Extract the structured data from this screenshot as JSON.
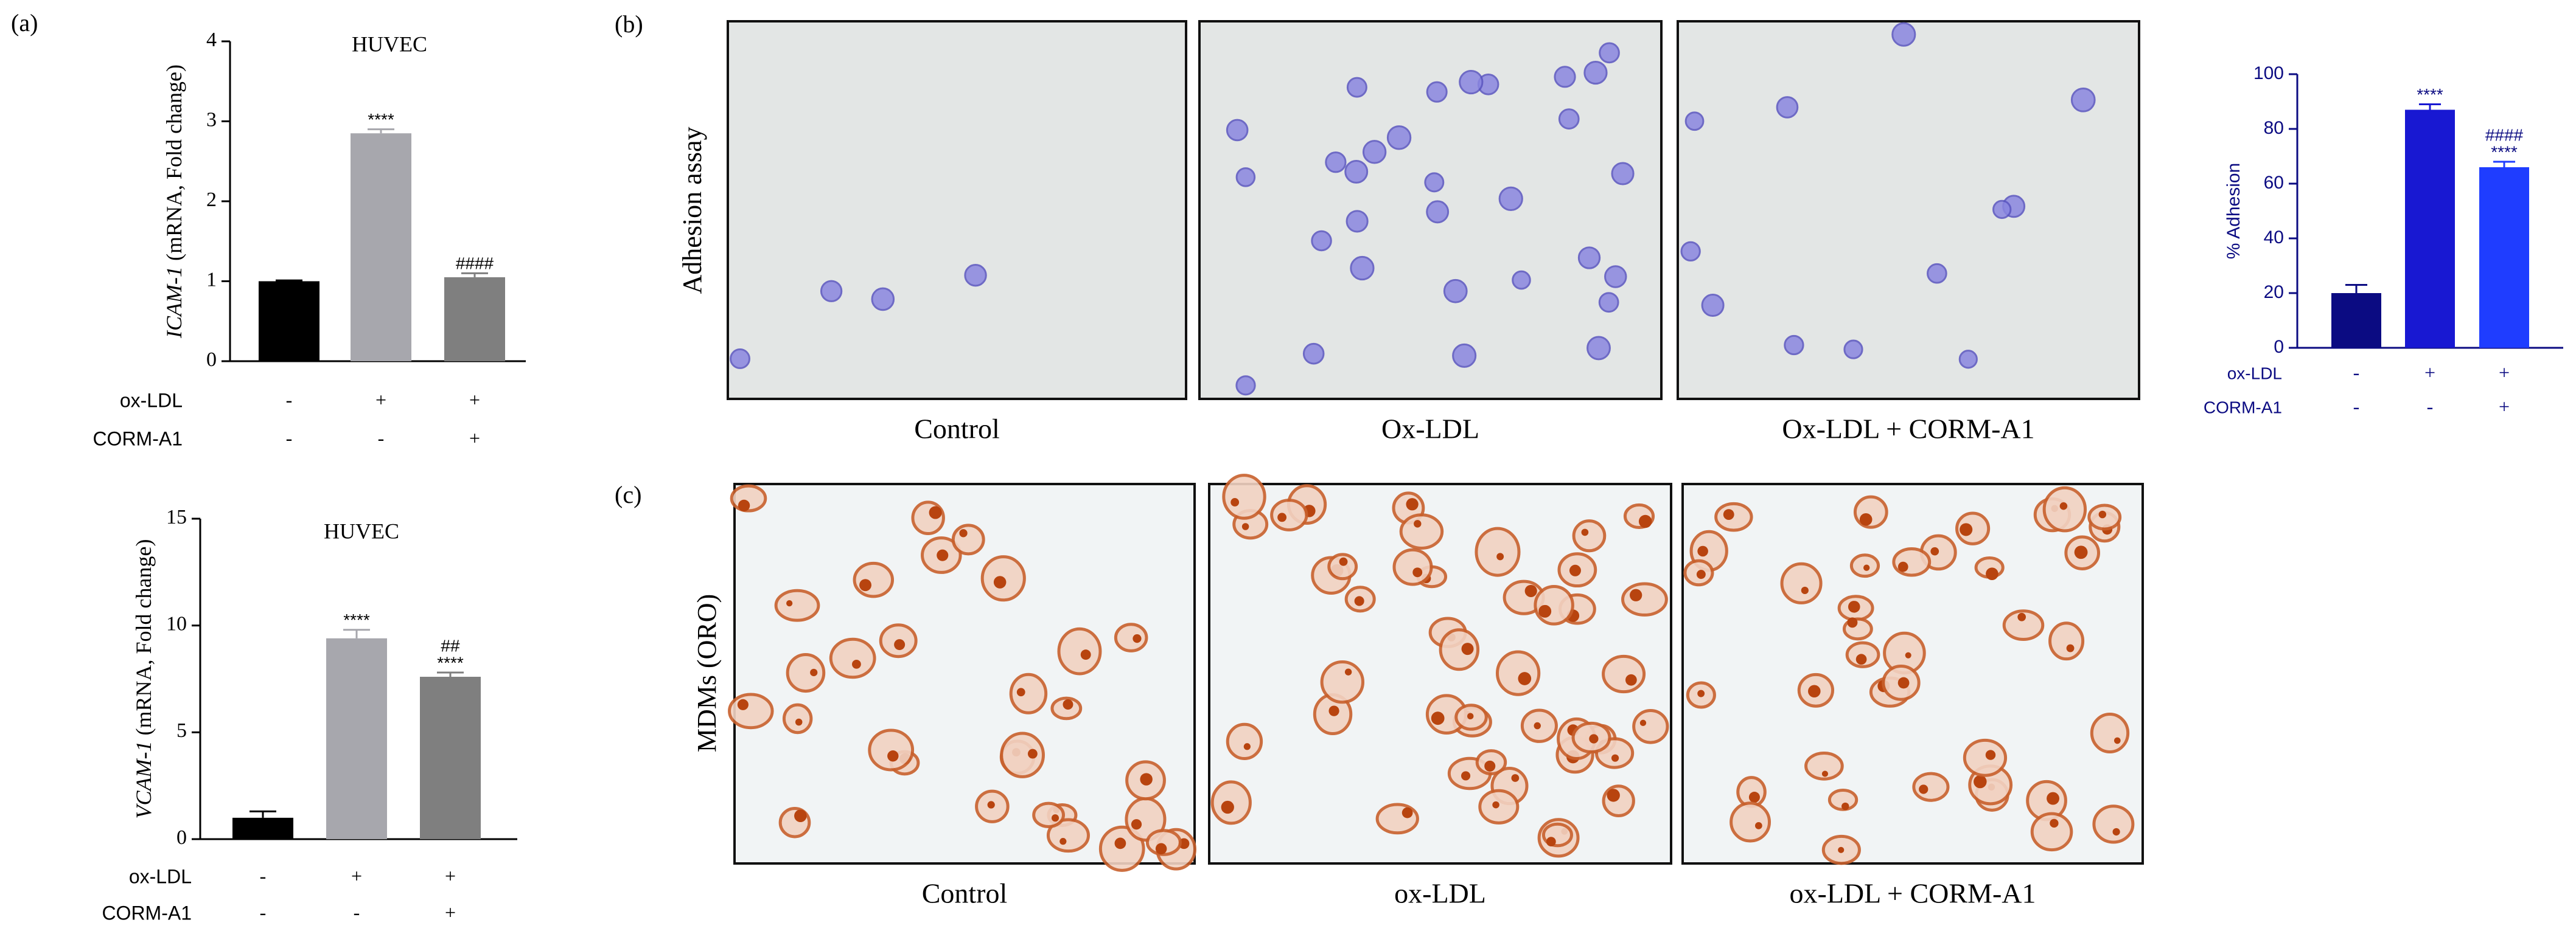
{
  "panels": {
    "a": "(a)",
    "b": "(b)",
    "c": "(c)"
  },
  "adhesion": {
    "row_label": "Adhesion assay",
    "captions": [
      "Control",
      "Ox-LDL",
      "Ox-LDL + CORM-A1"
    ]
  },
  "oro": {
    "row_label": "MDMs (ORO)",
    "captions": [
      "Control",
      "ox-LDL",
      "ox-LDL + CORM-A1"
    ]
  },
  "chart_data": [
    {
      "type": "bar",
      "title": "HUVEC",
      "ylabel_gene": "ICAM-1",
      "ylabel": " (mRNA, Fold change)",
      "values": [
        1.0,
        2.85,
        1.05
      ],
      "errors": [
        0.01,
        0.05,
        0.05
      ],
      "colors": [
        "#000000",
        "#a7a7ad",
        "#7f7f7f"
      ],
      "axis_color": "#000000",
      "annotations": [
        null,
        [
          "****"
        ],
        [
          "####"
        ]
      ],
      "conditions": [
        {
          "name": "ox-LDL",
          "values": [
            "-",
            "+",
            "+"
          ]
        },
        {
          "name": "CORM-A1",
          "values": [
            "-",
            "-",
            "+"
          ]
        }
      ],
      "ylim": [
        0,
        4
      ],
      "yticks": [
        0,
        1,
        2,
        3,
        4
      ]
    },
    {
      "type": "bar",
      "title": "HUVEC",
      "ylabel_gene": "VCAM-1",
      "ylabel": " (mRNA, Fold change)",
      "values": [
        1.0,
        9.4,
        7.6
      ],
      "errors": [
        0.3,
        0.4,
        0.2
      ],
      "colors": [
        "#000000",
        "#a7a7ad",
        "#7f7f7f"
      ],
      "axis_color": "#000000",
      "annotations": [
        null,
        [
          "****"
        ],
        [
          "##",
          "****"
        ]
      ],
      "conditions": [
        {
          "name": "ox-LDL",
          "values": [
            "-",
            "+",
            "+"
          ]
        },
        {
          "name": "CORM-A1",
          "values": [
            "-",
            "-",
            "+"
          ]
        }
      ],
      "ylim": [
        0,
        15
      ],
      "yticks": [
        0,
        5,
        10,
        15
      ]
    },
    {
      "type": "bar",
      "ylabel": "% Adhesion",
      "values": [
        20,
        87,
        66
      ],
      "errors": [
        3,
        2,
        2
      ],
      "colors": [
        "#0b0b82",
        "#1818d2",
        "#1f3dff"
      ],
      "axis_color": "#0b0b82",
      "annotations": [
        null,
        [
          "****"
        ],
        [
          "####",
          "****"
        ]
      ],
      "conditions": [
        {
          "name": "ox-LDL",
          "values": [
            "-",
            "+",
            "+"
          ]
        },
        {
          "name": "CORM-A1",
          "values": [
            "-",
            "-",
            "+"
          ]
        }
      ],
      "ylim": [
        0,
        100
      ],
      "yticks": [
        0,
        20,
        40,
        60,
        80,
        100
      ]
    }
  ]
}
